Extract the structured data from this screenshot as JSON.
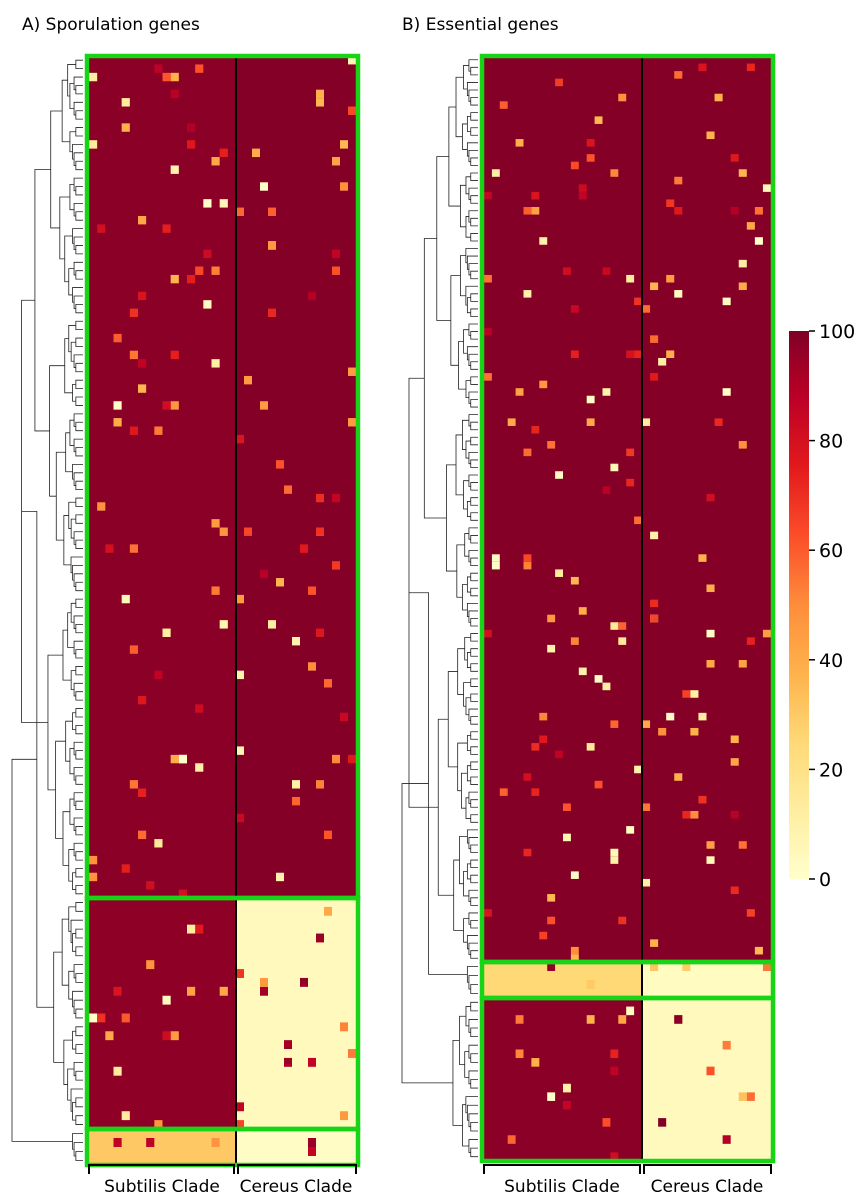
{
  "chart_data": {
    "type": "heatmap",
    "colorbar": {
      "min": 0,
      "max": 100,
      "ticks": [
        "0",
        "20",
        "40",
        "60",
        "80",
        "100"
      ],
      "colormap": "YlOrRd",
      "colors": [
        "#ffffcc",
        "#ffeda0",
        "#fed976",
        "#feb24c",
        "#fd8d3c",
        "#fc4e2a",
        "#e31a1c",
        "#bd0026",
        "#800026"
      ]
    },
    "highlight_color": "#17d417",
    "panels": [
      {
        "title": "A) Sporulation genes",
        "columns": [
          "Subtilis Clade",
          "Cereus Clade"
        ],
        "subtilis_columns": 18,
        "cereus_columns": 15,
        "gene_groups": [
          {
            "rows": 100,
            "subtilis_level": 98,
            "cereus_level": 99
          },
          {
            "rows": 26,
            "subtilis_level": 97,
            "cereus_level": 4
          },
          {
            "rows": 4,
            "subtilis_level": 30,
            "cereus_level": 2
          }
        ]
      },
      {
        "title": "B) Essential genes",
        "columns": [
          "Subtilis Clade",
          "Cereus Clade"
        ],
        "subtilis_columns": 20,
        "cereus_columns": 16,
        "gene_groups": [
          {
            "rows": 120,
            "subtilis_level": 99,
            "cereus_level": 99
          },
          {
            "rows": 4,
            "subtilis_level": 25,
            "cereus_level": 3
          },
          {
            "rows": 19,
            "subtilis_level": 98,
            "cereus_level": 4
          }
        ]
      }
    ]
  }
}
